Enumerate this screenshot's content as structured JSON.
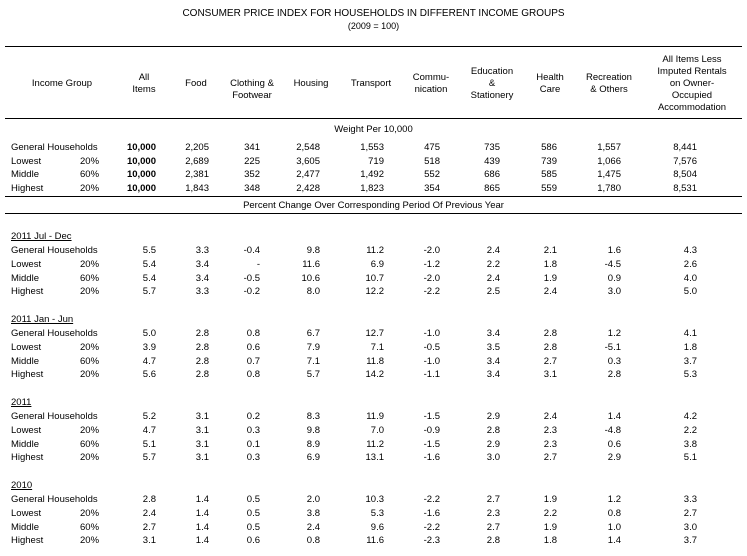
{
  "title": "CONSUMER PRICE INDEX FOR HOUSEHOLDS IN DIFFERENT INCOME GROUPS",
  "subtitle": "(2009 = 100)",
  "columns": [
    "Income Group",
    "All\nItems",
    "Food",
    "Clothing &\nFootwear",
    "Housing",
    "Transport",
    "Commu-\nnication",
    "Education\n&\nStationery",
    "Health\nCare",
    "Recreation\n& Others",
    "All Items Less\nImputed Rentals\non Owner-\nOccupied\nAccommodation"
  ],
  "weight_band": "Weight  Per  10,000",
  "percent_band": "Percent Change Over Corresponding Period Of Previous Year",
  "weights": [
    {
      "label": "General Households",
      "pct": "",
      "values": [
        "10,000",
        "2,205",
        "341",
        "2,548",
        "1,553",
        "475",
        "735",
        "586",
        "1,557",
        "8,441"
      ]
    },
    {
      "label": "Lowest",
      "pct": "20%",
      "values": [
        "10,000",
        "2,689",
        "225",
        "3,605",
        "719",
        "518",
        "439",
        "739",
        "1,066",
        "7,576"
      ]
    },
    {
      "label": "Middle",
      "pct": "60%",
      "values": [
        "10,000",
        "2,381",
        "352",
        "2,477",
        "1,492",
        "552",
        "686",
        "585",
        "1,475",
        "8,504"
      ]
    },
    {
      "label": "Highest",
      "pct": "20%",
      "values": [
        "10,000",
        "1,843",
        "348",
        "2,428",
        "1,823",
        "354",
        "865",
        "559",
        "1,780",
        "8,531"
      ]
    }
  ],
  "sections": [
    {
      "title": "2011 Jul - Dec",
      "rows": [
        {
          "label": "General Households",
          "pct": "",
          "values": [
            "5.5",
            "3.3",
            "-0.4",
            "9.8",
            "11.2",
            "-2.0",
            "2.4",
            "2.1",
            "1.6",
            "4.3"
          ]
        },
        {
          "label": "Lowest",
          "pct": "20%",
          "values": [
            "5.4",
            "3.4",
            "-",
            "11.6",
            "6.9",
            "-1.2",
            "2.2",
            "1.8",
            "-4.5",
            "2.6"
          ]
        },
        {
          "label": "Middle",
          "pct": "60%",
          "values": [
            "5.4",
            "3.4",
            "-0.5",
            "10.6",
            "10.7",
            "-2.0",
            "2.4",
            "1.9",
            "0.9",
            "4.0"
          ]
        },
        {
          "label": "Highest",
          "pct": "20%",
          "values": [
            "5.7",
            "3.3",
            "-0.2",
            "8.0",
            "12.2",
            "-2.2",
            "2.5",
            "2.4",
            "3.0",
            "5.0"
          ]
        }
      ]
    },
    {
      "title": "2011 Jan - Jun",
      "rows": [
        {
          "label": "General Households",
          "pct": "",
          "values": [
            "5.0",
            "2.8",
            "0.8",
            "6.7",
            "12.7",
            "-1.0",
            "3.4",
            "2.8",
            "1.2",
            "4.1"
          ]
        },
        {
          "label": "Lowest",
          "pct": "20%",
          "values": [
            "3.9",
            "2.8",
            "0.6",
            "7.9",
            "7.1",
            "-0.5",
            "3.5",
            "2.8",
            "-5.1",
            "1.8"
          ]
        },
        {
          "label": "Middle",
          "pct": "60%",
          "values": [
            "4.7",
            "2.8",
            "0.7",
            "7.1",
            "11.8",
            "-1.0",
            "3.4",
            "2.7",
            "0.3",
            "3.7"
          ]
        },
        {
          "label": "Highest",
          "pct": "20%",
          "values": [
            "5.6",
            "2.8",
            "0.8",
            "5.7",
            "14.2",
            "-1.1",
            "3.4",
            "3.1",
            "2.8",
            "5.3"
          ]
        }
      ]
    },
    {
      "title": "2011",
      "rows": [
        {
          "label": "General Households",
          "pct": "",
          "values": [
            "5.2",
            "3.1",
            "0.2",
            "8.3",
            "11.9",
            "-1.5",
            "2.9",
            "2.4",
            "1.4",
            "4.2"
          ]
        },
        {
          "label": "Lowest",
          "pct": "20%",
          "values": [
            "4.7",
            "3.1",
            "0.3",
            "9.8",
            "7.0",
            "-0.9",
            "2.8",
            "2.3",
            "-4.8",
            "2.2"
          ]
        },
        {
          "label": "Middle",
          "pct": "60%",
          "values": [
            "5.1",
            "3.1",
            "0.1",
            "8.9",
            "11.2",
            "-1.5",
            "2.9",
            "2.3",
            "0.6",
            "3.8"
          ]
        },
        {
          "label": "Highest",
          "pct": "20%",
          "values": [
            "5.7",
            "3.1",
            "0.3",
            "6.9",
            "13.1",
            "-1.6",
            "3.0",
            "2.7",
            "2.9",
            "5.1"
          ]
        }
      ]
    },
    {
      "title": "2010",
      "rows": [
        {
          "label": "General Households",
          "pct": "",
          "values": [
            "2.8",
            "1.4",
            "0.5",
            "2.0",
            "10.3",
            "-2.2",
            "2.7",
            "1.9",
            "1.2",
            "3.3"
          ]
        },
        {
          "label": "Lowest",
          "pct": "20%",
          "values": [
            "2.4",
            "1.4",
            "0.5",
            "3.8",
            "5.3",
            "-1.6",
            "2.3",
            "2.2",
            "0.8",
            "2.7"
          ]
        },
        {
          "label": "Middle",
          "pct": "60%",
          "values": [
            "2.7",
            "1.4",
            "0.5",
            "2.4",
            "9.6",
            "-2.2",
            "2.7",
            "1.9",
            "1.0",
            "3.0"
          ]
        },
        {
          "label": "Highest",
          "pct": "20%",
          "values": [
            "3.1",
            "1.4",
            "0.6",
            "0.8",
            "11.6",
            "-2.3",
            "2.8",
            "1.8",
            "1.4",
            "3.7"
          ]
        }
      ]
    }
  ]
}
